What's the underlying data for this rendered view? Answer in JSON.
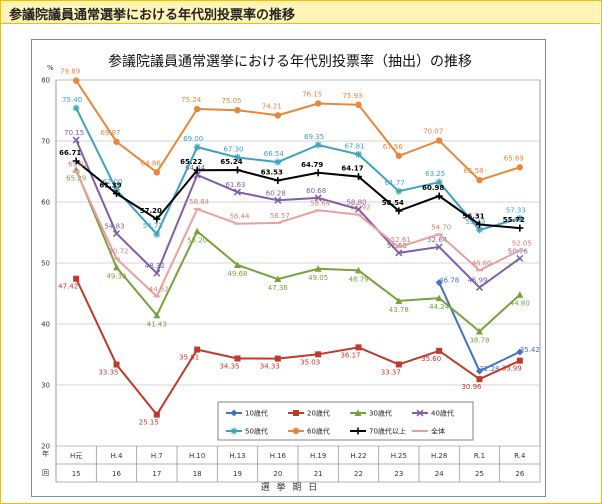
{
  "header": {
    "title": "参議院議員通常選挙における年代別投票率の推移"
  },
  "chart_data": {
    "type": "line",
    "title": "参議院議員通常選挙における年代別投票率（抽出）の推移",
    "ylabel": "%",
    "xlabel": "選 挙 期 日",
    "ylim": [
      20,
      80
    ],
    "yticks": [
      20,
      30,
      40,
      50,
      60,
      70,
      80
    ],
    "row_label_top": "年",
    "row_label_bottom": "回",
    "categories": [
      "H元",
      "H.4",
      "H.7",
      "H.10",
      "H.13",
      "H.16",
      "H.19",
      "H.22",
      "H.25",
      "H.28",
      "R.1",
      "R.4"
    ],
    "sessions": [
      "15",
      "16",
      "17",
      "18",
      "19",
      "20",
      "21",
      "22",
      "23",
      "24",
      "25",
      "26"
    ],
    "series": [
      {
        "name": "10歳代",
        "color": "#4472c4",
        "marker": "diamond",
        "values": [
          null,
          null,
          null,
          null,
          null,
          null,
          null,
          null,
          null,
          46.78,
          32.28,
          35.42
        ],
        "labels": [
          "",
          "",
          "",
          "",
          "",
          "",
          "",
          "",
          "",
          "46.78",
          "32.28",
          "35.42"
        ]
      },
      {
        "name": "20歳代",
        "color": "#c0392b",
        "marker": "square",
        "values": [
          47.42,
          33.35,
          25.15,
          35.81,
          34.35,
          34.33,
          35.03,
          36.17,
          33.37,
          35.6,
          30.96,
          33.99
        ],
        "labels": [
          "47.42",
          "33.35",
          "25.15",
          "35.81",
          "34.35",
          "34.33",
          "35.03",
          "36.17",
          "33.37",
          "35.60",
          "30.96",
          "33.99"
        ]
      },
      {
        "name": "30歳代",
        "color": "#77a23c",
        "marker": "triangle",
        "values": [
          65.29,
          49.3,
          41.43,
          55.2,
          49.68,
          47.36,
          49.05,
          48.79,
          43.78,
          44.24,
          38.78,
          44.8
        ],
        "labels": [
          "65.29",
          "49.30",
          "41.43",
          "55.20",
          "49.68",
          "47.36",
          "49.05",
          "48.79",
          "43.78",
          "44.24",
          "38.78",
          "44.80"
        ]
      },
      {
        "name": "40歳代",
        "color": "#7c5fa8",
        "marker": "x",
        "values": [
          70.15,
          54.83,
          48.32,
          64.44,
          61.63,
          60.28,
          60.68,
          58.8,
          51.66,
          52.64,
          45.99,
          50.76
        ],
        "labels": [
          "70.15",
          "54.83",
          "48.32",
          "64.44",
          "61.63",
          "60.28",
          "60.68",
          "58.80",
          "51.66",
          "52.64",
          "45.99",
          "50.76"
        ]
      },
      {
        "name": "50歳代",
        "color": "#3ba3bf",
        "marker": "star",
        "values": [
          75.4,
          62.0,
          54.72,
          69.0,
          67.3,
          66.54,
          69.35,
          67.81,
          61.77,
          63.25,
          55.43,
          57.33
        ],
        "labels": [
          "75.40",
          "62.00",
          "54.72",
          "69.00",
          "67.30",
          "66.54",
          "69.35",
          "67.81",
          "61.77",
          "63.25",
          "55.43",
          "57.33"
        ]
      },
      {
        "name": "60歳代",
        "color": "#e8873a",
        "marker": "circle",
        "values": [
          79.89,
          69.87,
          64.86,
          75.24,
          75.05,
          74.21,
          76.15,
          75.93,
          67.56,
          70.07,
          63.58,
          65.69
        ],
        "labels": [
          "79.89",
          "69.87",
          "64.86",
          "75.24",
          "75.05",
          "74.21",
          "76.15",
          "75.93",
          "67.56",
          "70.07",
          "63.58",
          "65.69"
        ]
      },
      {
        "name": "70歳代以上",
        "color": "#000000",
        "marker": "plus",
        "values": [
          66.71,
          61.39,
          57.2,
          65.22,
          65.24,
          63.53,
          64.79,
          64.17,
          58.54,
          60.98,
          56.31,
          55.72
        ],
        "labels": [
          "66.71",
          "61.39",
          "57.20",
          "65.22",
          "65.24",
          "63.53",
          "64.79",
          "64.17",
          "58.54",
          "60.98",
          "56.31",
          "55.72"
        ]
      },
      {
        "name": "全体",
        "color": "#e8a0a0",
        "marker": "dash",
        "values": [
          65.02,
          50.72,
          44.52,
          58.84,
          56.44,
          56.57,
          58.64,
          57.92,
          52.61,
          54.7,
          48.8,
          52.05
        ],
        "labels": [
          "65.02",
          "50.72",
          "44.52",
          "58.84",
          "56.44",
          "56.57",
          "58.64",
          "57.92",
          "52.61",
          "54.70",
          "48.80",
          "52.05"
        ]
      }
    ]
  }
}
